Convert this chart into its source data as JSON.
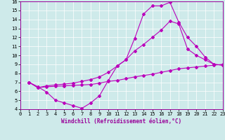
{
  "xlabel": "Windchill (Refroidissement éolien,°C)",
  "bg_color": "#ceeaea",
  "line_color": "#bb00bb",
  "xlim": [
    0,
    23
  ],
  "ylim": [
    4,
    16
  ],
  "xticks": [
    0,
    1,
    2,
    3,
    4,
    5,
    6,
    7,
    8,
    9,
    10,
    11,
    12,
    13,
    14,
    15,
    16,
    17,
    18,
    19,
    20,
    21,
    22,
    23
  ],
  "yticks": [
    4,
    5,
    6,
    7,
    8,
    9,
    10,
    11,
    12,
    13,
    14,
    15,
    16
  ],
  "line1_x": [
    1,
    2,
    3,
    4,
    5,
    6,
    7,
    8,
    9,
    10,
    11,
    12,
    13,
    14,
    15,
    16,
    17,
    18,
    19,
    20,
    21,
    22,
    23
  ],
  "line1_y": [
    7.0,
    6.5,
    5.9,
    5.0,
    4.7,
    4.4,
    4.1,
    4.7,
    5.5,
    7.2,
    8.8,
    9.5,
    11.9,
    14.6,
    15.5,
    15.5,
    15.9,
    13.7,
    12.0,
    11.0,
    9.8,
    9.0,
    8.9
  ],
  "line2_x": [
    1,
    2,
    3,
    4,
    5,
    6,
    7,
    8,
    9,
    10,
    11,
    12,
    13,
    14,
    15,
    16,
    17,
    18,
    19,
    20,
    21,
    22,
    23
  ],
  "line2_y": [
    7.0,
    6.4,
    6.5,
    6.55,
    6.6,
    6.65,
    6.7,
    6.75,
    6.9,
    7.1,
    7.2,
    7.4,
    7.6,
    7.75,
    7.9,
    8.1,
    8.3,
    8.5,
    8.6,
    8.7,
    8.8,
    8.9,
    9.0
  ],
  "line3_x": [
    1,
    2,
    3,
    4,
    5,
    6,
    7,
    8,
    9,
    10,
    11,
    12,
    13,
    14,
    15,
    16,
    17,
    18,
    19,
    20,
    21,
    22,
    23
  ],
  "line3_y": [
    7.0,
    6.4,
    6.6,
    6.7,
    6.8,
    6.9,
    7.1,
    7.3,
    7.6,
    8.1,
    8.8,
    9.5,
    10.5,
    11.2,
    12.0,
    12.8,
    13.8,
    13.5,
    10.7,
    10.0,
    9.5,
    9.0,
    8.9
  ]
}
